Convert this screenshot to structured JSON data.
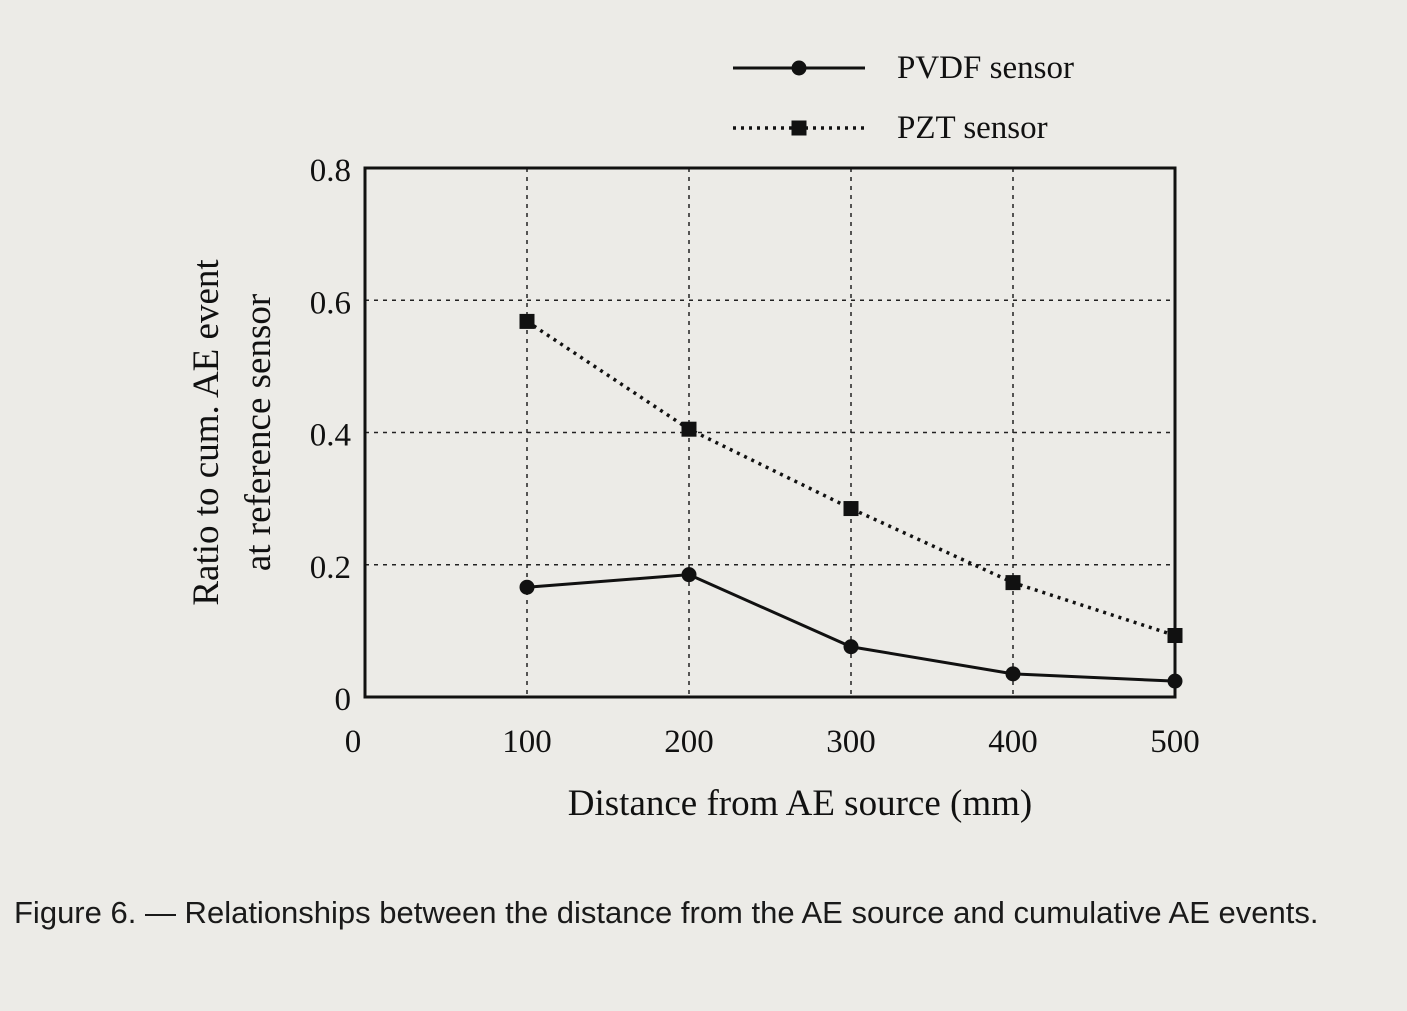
{
  "chart_data": {
    "type": "line",
    "xlabel": "Distance from AE source (mm)",
    "ylabel_lines": [
      "Ratio to cum. AE event",
      "at reference sensor"
    ],
    "xlim": [
      0,
      500
    ],
    "ylim": [
      0,
      0.8
    ],
    "x_ticks": [
      0,
      100,
      200,
      300,
      400,
      500
    ],
    "x_tick_labels": [
      "0",
      "100",
      "200",
      "300",
      "400",
      "500"
    ],
    "y_ticks": [
      0,
      0.2,
      0.4,
      0.6,
      0.8
    ],
    "y_tick_labels": [
      "0",
      "0.2",
      "0.4",
      "0.6",
      "0.8"
    ],
    "grid": true,
    "legend_position": "top-right, above plot",
    "x": [
      100,
      200,
      300,
      400,
      500
    ],
    "series": [
      {
        "name": "PVDF sensor",
        "values": [
          0.166,
          0.185,
          0.076,
          0.035,
          0.024
        ],
        "line_style": "solid",
        "marker": "circle"
      },
      {
        "name": "PZT sensor",
        "values": [
          0.568,
          0.405,
          0.285,
          0.173,
          0.093
        ],
        "line_style": "dotted",
        "marker": "square"
      }
    ]
  },
  "caption": "Figure 6. — Relationships between the distance from the AE source and cumulative AE events."
}
